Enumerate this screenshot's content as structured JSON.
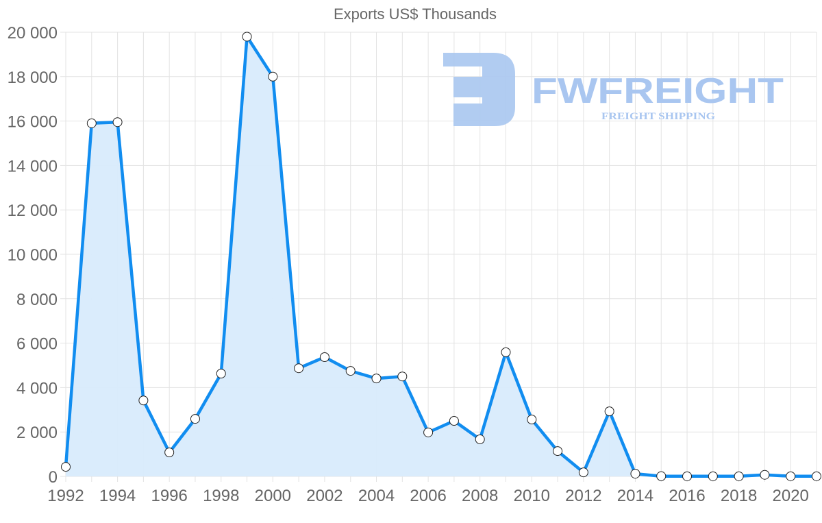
{
  "chart_data": {
    "type": "area",
    "title": "Exports US$ Thousands",
    "xlabel": "",
    "ylabel": "",
    "x": [
      1992,
      1993,
      1994,
      1995,
      1996,
      1997,
      1998,
      1999,
      2000,
      2001,
      2002,
      2003,
      2004,
      2005,
      2006,
      2007,
      2008,
      2009,
      2010,
      2011,
      2012,
      2013,
      2014,
      2015,
      2016,
      2017,
      2018,
      2019,
      2020,
      2021
    ],
    "series": [
      {
        "name": "Exports US$ Thousands",
        "values": [
          430,
          15900,
          15950,
          3420,
          1080,
          2590,
          4630,
          19800,
          18000,
          4870,
          5370,
          4750,
          4410,
          4500,
          1980,
          2500,
          1670,
          5590,
          2560,
          1140,
          180,
          2930,
          120,
          10,
          5,
          5,
          5,
          70,
          5,
          5
        ],
        "color": "#118df0",
        "fill": "#d8ebfc"
      }
    ],
    "ylim": [
      0,
      20000
    ],
    "xlim": [
      1992,
      2021
    ],
    "y_ticks": [
      "0",
      "2 000",
      "4 000",
      "6 000",
      "8 000",
      "10 000",
      "12 000",
      "14 000",
      "16 000",
      "18 000",
      "20 000"
    ],
    "x_ticks": [
      "1992",
      "1994",
      "1996",
      "1998",
      "2000",
      "2002",
      "2004",
      "2006",
      "2008",
      "2010",
      "2012",
      "2014",
      "2016",
      "2018",
      "2020"
    ],
    "grid": true,
    "legend": "none"
  },
  "watermark": {
    "brand": "FWFREIGHT",
    "tagline": "FREIGHT SHIPPING",
    "color": "#a9c6f0"
  }
}
